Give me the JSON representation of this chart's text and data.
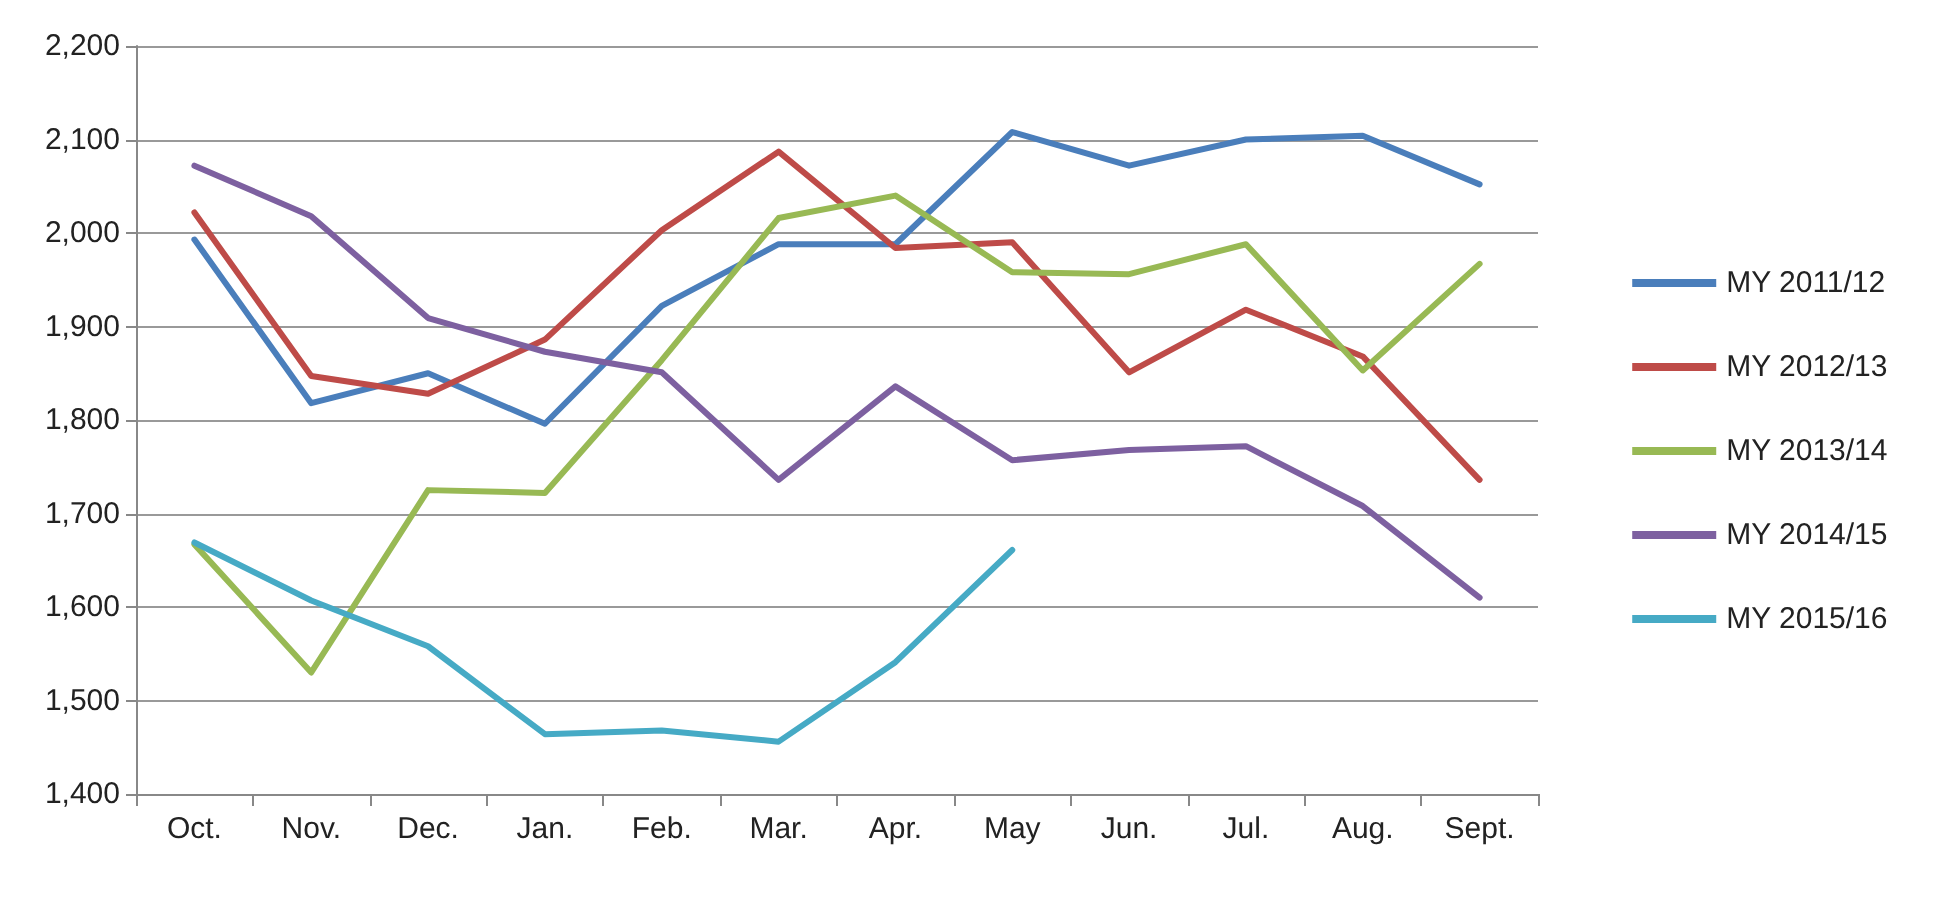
{
  "chart_data": {
    "type": "line",
    "categories": [
      "Oct.",
      "Nov.",
      "Dec.",
      "Jan.",
      "Feb.",
      "Mar.",
      "Apr.",
      "May",
      "Jun.",
      "Jul.",
      "Aug.",
      "Sept."
    ],
    "series": [
      {
        "name": "MY 2011/12",
        "color": "#4a7ebb",
        "values": [
          1993,
          1818,
          1850,
          1796,
          1922,
          1988,
          1988,
          2108,
          2072,
          2100,
          2104,
          2052
        ]
      },
      {
        "name": "MY 2012/13",
        "color": "#be4b48",
        "values": [
          2022,
          1847,
          1828,
          1886,
          2003,
          2087,
          1984,
          1990,
          1851,
          1918,
          1868,
          1736
        ]
      },
      {
        "name": "MY 2013/14",
        "color": "#98b954",
        "values": [
          1667,
          1530,
          1725,
          1722,
          1864,
          2016,
          2040,
          1958,
          1956,
          1988,
          1853,
          1967
        ]
      },
      {
        "name": "MY 2014/15",
        "color": "#7d60a0",
        "values": [
          2072,
          2018,
          1909,
          1873,
          1851,
          1736,
          1836,
          1757,
          1768,
          1772,
          1708,
          1610
        ]
      },
      {
        "name": "MY 2015/16",
        "color": "#46aac5",
        "values": [
          1669,
          1607,
          1558,
          1464,
          1468,
          1456,
          1541,
          1661,
          null,
          null,
          null,
          null
        ]
      }
    ],
    "ylim": [
      1400,
      2200
    ],
    "yticks": [
      {
        "value": 1400,
        "label": "1,400"
      },
      {
        "value": 1500,
        "label": "1,500"
      },
      {
        "value": 1600,
        "label": "1,600"
      },
      {
        "value": 1700,
        "label": "1,700"
      },
      {
        "value": 1800,
        "label": "1,800"
      },
      {
        "value": 1900,
        "label": "1,900"
      },
      {
        "value": 2000,
        "label": "2,000"
      },
      {
        "value": 2100,
        "label": "2,100"
      },
      {
        "value": 2200,
        "label": "2,200"
      }
    ],
    "grid": "y",
    "legend": "right",
    "marker": "none",
    "line_style": "solid"
  }
}
